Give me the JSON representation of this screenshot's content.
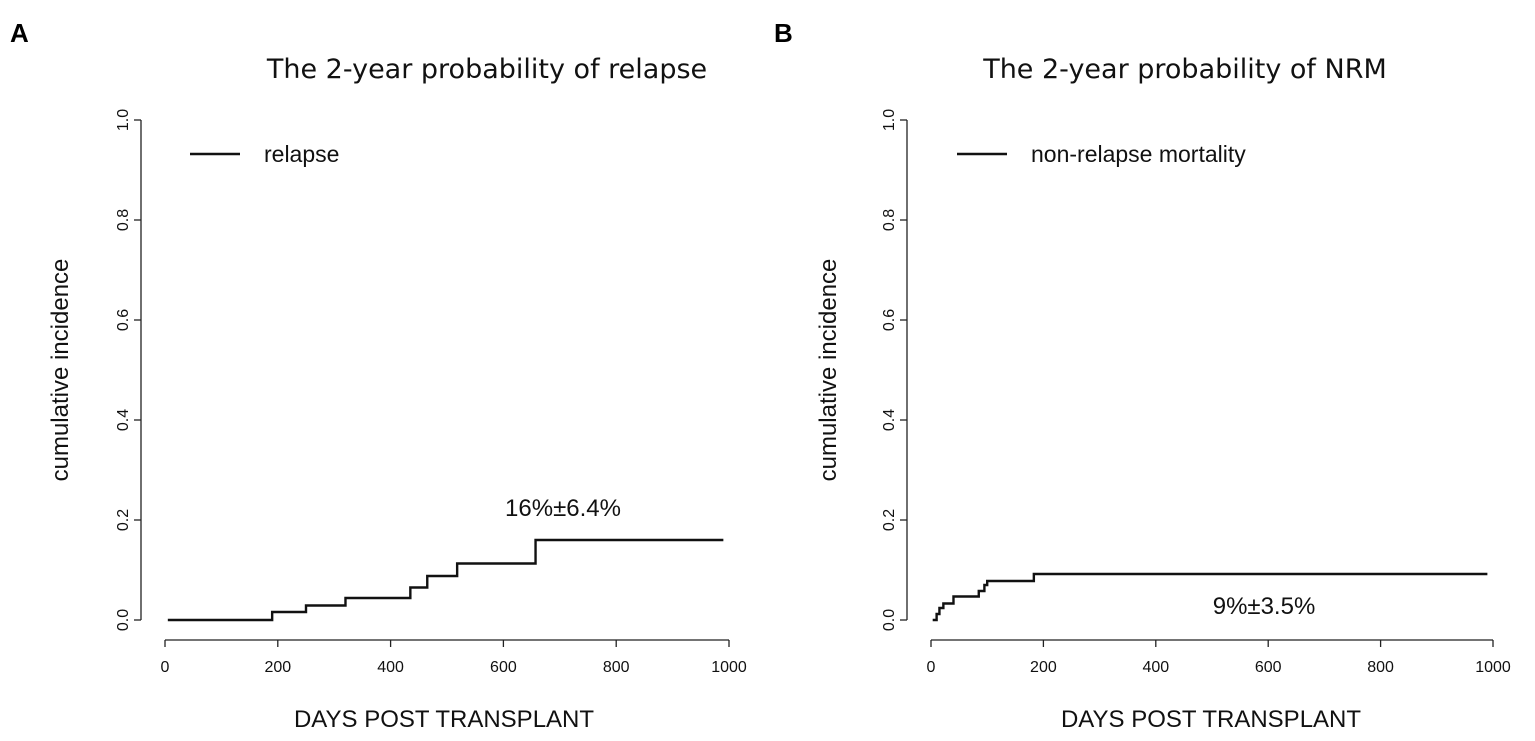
{
  "chart_data": [
    {
      "panel": "A",
      "type": "line",
      "title": "The 2-year probability of relapse",
      "xlabel": "DAYS POST TRANSPLANT",
      "ylabel": "cumulative incidence",
      "xlim": [
        0,
        1000
      ],
      "ylim": [
        0,
        1.0
      ],
      "xticks": [
        0,
        200,
        400,
        600,
        800,
        1000
      ],
      "yticks": [
        "0.0",
        "0.2",
        "0.4",
        "0.6",
        "0.8",
        "1.0"
      ],
      "legend": "relapse",
      "annotation": "16%±6.4%",
      "series": [
        {
          "name": "relapse",
          "step": true,
          "x": [
            5,
            190,
            250,
            320,
            435,
            465,
            518,
            657,
            990
          ],
          "y": [
            0.0,
            0.016,
            0.029,
            0.044,
            0.065,
            0.088,
            0.113,
            0.16,
            0.16
          ]
        }
      ]
    },
    {
      "panel": "B",
      "type": "line",
      "title": "The 2-year probability of NRM",
      "xlabel": "DAYS POST TRANSPLANT",
      "ylabel": "cumulative incidence",
      "xlim": [
        0,
        1000
      ],
      "ylim": [
        0,
        1.0
      ],
      "xticks": [
        0,
        200,
        400,
        600,
        800,
        1000
      ],
      "yticks": [
        "0.0",
        "0.2",
        "0.4",
        "0.6",
        "0.8",
        "1.0"
      ],
      "legend": "non-relapse mortality",
      "annotation": "9%±3.5%",
      "series": [
        {
          "name": "non-relapse mortality",
          "step": true,
          "x": [
            3,
            10,
            15,
            22,
            40,
            85,
            95,
            100,
            183,
            990
          ],
          "y": [
            0.0,
            0.012,
            0.024,
            0.033,
            0.047,
            0.058,
            0.07,
            0.078,
            0.092,
            0.092
          ]
        }
      ]
    }
  ]
}
